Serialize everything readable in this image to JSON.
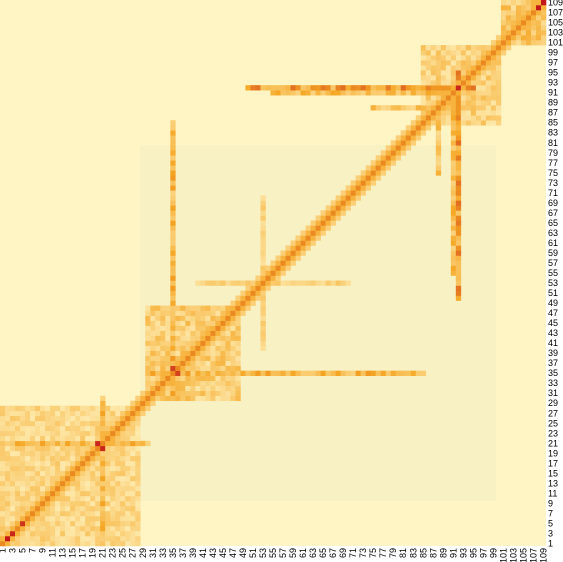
{
  "chart_data": {
    "type": "heatmap",
    "title": "",
    "xlabel": "",
    "ylabel": "",
    "n": 109,
    "x_tick_labels": [
      "1",
      "3",
      "5",
      "7",
      "9",
      "11",
      "13",
      "15",
      "17",
      "19",
      "21",
      "23",
      "25",
      "27",
      "29",
      "31",
      "33",
      "35",
      "37",
      "39",
      "41",
      "43",
      "45",
      "47",
      "49",
      "51",
      "53",
      "55",
      "57",
      "59",
      "61",
      "63",
      "65",
      "67",
      "69",
      "71",
      "73",
      "75",
      "77",
      "79",
      "81",
      "83",
      "85",
      "87",
      "89",
      "91",
      "93",
      "95",
      "97",
      "99",
      "101",
      "103",
      "105",
      "107",
      "109"
    ],
    "y_tick_labels": [
      "1",
      "3",
      "5",
      "7",
      "9",
      "11",
      "13",
      "15",
      "17",
      "19",
      "21",
      "23",
      "25",
      "27",
      "29",
      "31",
      "33",
      "35",
      "37",
      "39",
      "41",
      "43",
      "45",
      "47",
      "49",
      "51",
      "53",
      "55",
      "57",
      "59",
      "61",
      "63",
      "65",
      "67",
      "69",
      "71",
      "73",
      "75",
      "77",
      "79",
      "81",
      "83",
      "85",
      "87",
      "89",
      "91",
      "93",
      "95",
      "97",
      "99",
      "101",
      "103",
      "105",
      "107",
      "109"
    ],
    "value_range": [
      0,
      1
    ],
    "colormap": "heat (pale yellow → orange → red)",
    "colors": {
      "low": "#FFF5C4",
      "mid": "#F5A623",
      "high": "#C4171A",
      "block_tint": "#F1EFC4"
    },
    "features": [
      {
        "kind": "diagonal",
        "from": 1,
        "to": 109,
        "value": 0.6
      },
      {
        "kind": "block",
        "x": [
          1,
          28
        ],
        "y": [
          1,
          28
        ],
        "value": 0.3
      },
      {
        "kind": "block",
        "x": [
          30,
          48
        ],
        "y": [
          30,
          48
        ],
        "value": 0.4
      },
      {
        "kind": "block",
        "x": [
          85,
          100
        ],
        "y": [
          85,
          100
        ],
        "value": 0.35
      },
      {
        "kind": "block",
        "x": [
          101,
          109
        ],
        "y": [
          101,
          109
        ],
        "value": 0.45
      },
      {
        "kind": "stripe",
        "index": 35,
        "from": 30,
        "to": 85,
        "value": 0.55
      },
      {
        "kind": "stripe",
        "index": 21,
        "from": 1,
        "to": 30,
        "value": 0.55
      },
      {
        "kind": "stripe",
        "index": 92,
        "from": 50,
        "to": 95,
        "value": 0.7
      },
      {
        "kind": "stripe",
        "index": 91,
        "from": 55,
        "to": 95,
        "value": 0.5
      },
      {
        "kind": "stripe",
        "index": 88,
        "from": 75,
        "to": 95,
        "value": 0.45
      },
      {
        "kind": "stripe",
        "index": 53,
        "from": 40,
        "to": 70,
        "value": 0.3
      },
      {
        "kind": "hotspot",
        "x": 2,
        "y": 2,
        "value": 1.0
      },
      {
        "kind": "hotspot",
        "x": 3,
        "y": 3,
        "value": 0.95
      },
      {
        "kind": "hotspot",
        "x": 5,
        "y": 5,
        "value": 0.9
      },
      {
        "kind": "hotspot",
        "x": 20,
        "y": 21,
        "value": 0.95
      },
      {
        "kind": "hotspot",
        "x": 21,
        "y": 20,
        "value": 0.9
      },
      {
        "kind": "hotspot",
        "x": 35,
        "y": 36,
        "value": 0.85
      },
      {
        "kind": "hotspot",
        "x": 92,
        "y": 92,
        "value": 0.95
      },
      {
        "kind": "hotspot",
        "x": 108,
        "y": 108,
        "value": 1.0
      },
      {
        "kind": "hotspot",
        "x": 109,
        "y": 109,
        "value": 1.0
      }
    ]
  }
}
